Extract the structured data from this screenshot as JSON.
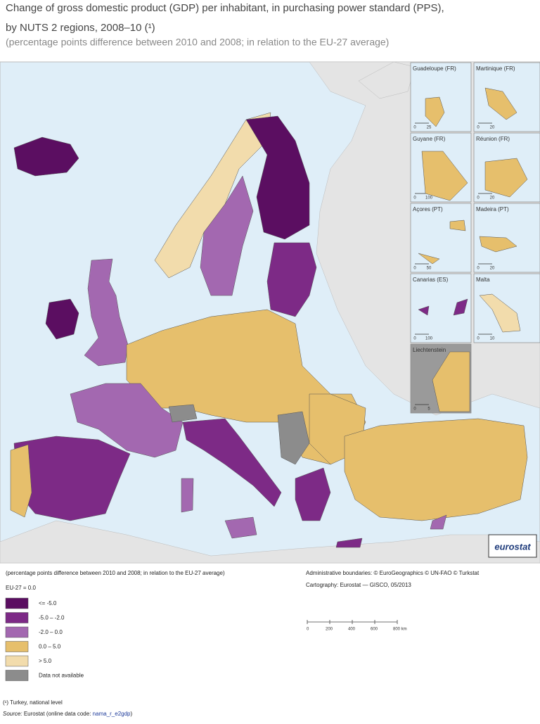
{
  "header": {
    "title_line1": "Change of gross domestic product (GDP) per inhabitant, in purchasing power standard (PPS),",
    "title_line2": "by NUTS 2 regions, 2008–10 (¹)",
    "subtitle": "(percentage points difference between 2010 and 2008; in relation to the EU-27 average)"
  },
  "insets": [
    {
      "label": "Guadeloupe (FR)",
      "scale": [
        "0",
        "25"
      ]
    },
    {
      "label": "Martinique (FR)",
      "scale": [
        "0",
        "20"
      ]
    },
    {
      "label": "Guyane (FR)",
      "scale": [
        "0",
        "100"
      ]
    },
    {
      "label": "Réunion (FR)",
      "scale": [
        "0",
        "20"
      ]
    },
    {
      "label": "Açores (PT)",
      "scale": [
        "0",
        "50"
      ]
    },
    {
      "label": "Madeira (PT)",
      "scale": [
        "0",
        "20"
      ]
    },
    {
      "label": "Canarias (ES)",
      "scale": [
        "0",
        "100"
      ]
    },
    {
      "label": "Malta",
      "scale": [
        "0",
        "10"
      ]
    },
    {
      "label": "Liechtenstein",
      "scale": [
        "0",
        "5"
      ]
    }
  ],
  "logo": "eurostat",
  "legend": {
    "caption": "(percentage points difference between 2010 and 2008; in relation to the EU-27 average)",
    "base": "EU-27 = 0.0",
    "classes": [
      {
        "label": "<= -5.0",
        "color": "#5b0e61"
      },
      {
        "label": "-5.0 – -2.0",
        "color": "#7d2a86"
      },
      {
        "label": "-2.0 – 0.0",
        "color": "#a368b0"
      },
      {
        "label": "0.0 – 5.0",
        "color": "#e6bf6c"
      },
      {
        "label": "> 5.0",
        "color": "#f2dcac"
      },
      {
        "label": "Data not available",
        "color": "#8c8c8c"
      }
    ]
  },
  "credits": [
    "Administrative boundaries: © EuroGeographics © UN-FAO © Turkstat",
    "Cartography: Eurostat — GISCO, 05/2013"
  ],
  "scale_bar": [
    "0",
    "200",
    "400",
    "600",
    "800 km"
  ],
  "footnote": "(¹) Turkey, national level",
  "source": {
    "prefix": "Source:",
    "text": "Eurostat (online data code:",
    "code": "nama_r_e2gdp",
    "suffix": ")"
  }
}
